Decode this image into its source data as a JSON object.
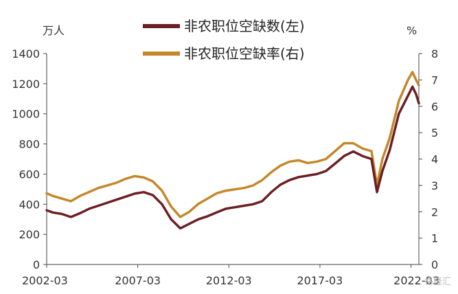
{
  "chart_data": {
    "type": "line",
    "left_unit": "万人",
    "right_unit": "%",
    "x_tick_labels": [
      "2002-03",
      "2007-03",
      "2012-03",
      "2017-03",
      "2022-03"
    ],
    "y_left": {
      "range": [
        0,
        1400
      ],
      "ticks": [
        0,
        200,
        400,
        600,
        800,
        1000,
        1200,
        1400
      ]
    },
    "y_right": {
      "range": [
        0,
        8
      ],
      "ticks": [
        0,
        1,
        2,
        3,
        4,
        5,
        6,
        7,
        8
      ]
    },
    "grid": false,
    "legend_position": "top",
    "series": [
      {
        "name": "非农职位空缺数(左)",
        "axis": "left",
        "color": "#6b1f24",
        "points": [
          [
            2002.17,
            360
          ],
          [
            2002.5,
            345
          ],
          [
            2003.0,
            335
          ],
          [
            2003.5,
            315
          ],
          [
            2004.0,
            340
          ],
          [
            2004.5,
            370
          ],
          [
            2005.0,
            390
          ],
          [
            2005.5,
            410
          ],
          [
            2006.0,
            430
          ],
          [
            2006.5,
            450
          ],
          [
            2007.0,
            470
          ],
          [
            2007.5,
            480
          ],
          [
            2008.0,
            460
          ],
          [
            2008.5,
            400
          ],
          [
            2009.0,
            300
          ],
          [
            2009.5,
            240
          ],
          [
            2010.0,
            270
          ],
          [
            2010.5,
            300
          ],
          [
            2011.0,
            320
          ],
          [
            2011.5,
            345
          ],
          [
            2012.0,
            370
          ],
          [
            2012.5,
            380
          ],
          [
            2013.0,
            390
          ],
          [
            2013.5,
            400
          ],
          [
            2014.0,
            420
          ],
          [
            2014.5,
            480
          ],
          [
            2015.0,
            530
          ],
          [
            2015.5,
            560
          ],
          [
            2016.0,
            580
          ],
          [
            2016.5,
            590
          ],
          [
            2017.0,
            600
          ],
          [
            2017.5,
            620
          ],
          [
            2018.0,
            670
          ],
          [
            2018.5,
            720
          ],
          [
            2019.0,
            750
          ],
          [
            2019.5,
            720
          ],
          [
            2020.0,
            700
          ],
          [
            2020.3,
            480
          ],
          [
            2020.6,
            620
          ],
          [
            2021.0,
            760
          ],
          [
            2021.5,
            1000
          ],
          [
            2022.0,
            1120
          ],
          [
            2022.25,
            1180
          ],
          [
            2022.45,
            1130
          ],
          [
            2022.6,
            1070
          ]
        ]
      },
      {
        "name": "非农职位空缺率(右)",
        "axis": "right",
        "color": "#c4882a",
        "points": [
          [
            2002.17,
            2.7
          ],
          [
            2002.5,
            2.6
          ],
          [
            2003.0,
            2.5
          ],
          [
            2003.5,
            2.4
          ],
          [
            2004.0,
            2.6
          ],
          [
            2004.5,
            2.75
          ],
          [
            2005.0,
            2.9
          ],
          [
            2005.5,
            3.0
          ],
          [
            2006.0,
            3.1
          ],
          [
            2006.5,
            3.25
          ],
          [
            2007.0,
            3.35
          ],
          [
            2007.5,
            3.3
          ],
          [
            2008.0,
            3.15
          ],
          [
            2008.5,
            2.8
          ],
          [
            2009.0,
            2.2
          ],
          [
            2009.5,
            1.8
          ],
          [
            2010.0,
            2.0
          ],
          [
            2010.5,
            2.3
          ],
          [
            2011.0,
            2.5
          ],
          [
            2011.5,
            2.7
          ],
          [
            2012.0,
            2.8
          ],
          [
            2012.5,
            2.85
          ],
          [
            2013.0,
            2.9
          ],
          [
            2013.5,
            3.0
          ],
          [
            2014.0,
            3.2
          ],
          [
            2014.5,
            3.5
          ],
          [
            2015.0,
            3.75
          ],
          [
            2015.5,
            3.9
          ],
          [
            2016.0,
            3.95
          ],
          [
            2016.5,
            3.85
          ],
          [
            2017.0,
            3.9
          ],
          [
            2017.5,
            4.0
          ],
          [
            2018.0,
            4.3
          ],
          [
            2018.5,
            4.6
          ],
          [
            2019.0,
            4.6
          ],
          [
            2019.5,
            4.4
          ],
          [
            2020.0,
            4.3
          ],
          [
            2020.3,
            3.0
          ],
          [
            2020.6,
            4.0
          ],
          [
            2021.0,
            4.8
          ],
          [
            2021.5,
            6.2
          ],
          [
            2022.0,
            7.0
          ],
          [
            2022.25,
            7.3
          ],
          [
            2022.45,
            7.0
          ],
          [
            2022.6,
            6.8
          ]
        ]
      }
    ]
  },
  "watermark": "格隆汇"
}
